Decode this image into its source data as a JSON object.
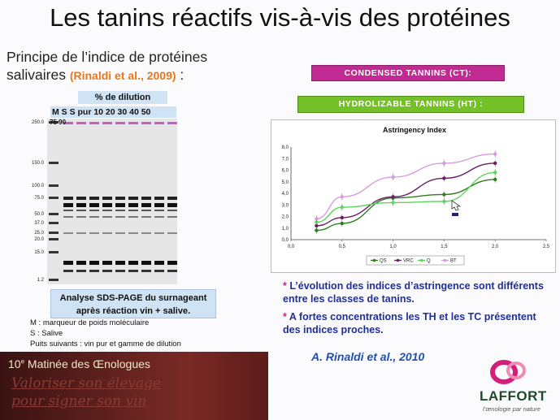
{
  "slide": {
    "title": "Les tanins réactifs vis-à-vis des protéines",
    "subtitle_line1": "Principe de l’indice de protéines",
    "subtitle_line2": "salivaires",
    "subtitle_citation": "(Rinaldi et al., 2009)",
    "subtitle_colon": " :"
  },
  "gel": {
    "dilution_header": "% de dilution",
    "lane_labels": "M   S   S  pur 10 20 30 40 50",
    "lane_values": "75 90",
    "markers": [
      "250.0",
      "150.0",
      "100.0",
      "75.0",
      "50.0",
      "37.0",
      "25.0",
      "20.0",
      "15.0",
      "1.2"
    ],
    "note_line1": "Analyse SDS-PAGE du surnageant",
    "note_line2": "après réaction vin + salive.",
    "legend": [
      "M : marqueur de poids moléculaire",
      "S : Salive",
      "Puits suivants : vin pur et gamme de dilution"
    ]
  },
  "labels": {
    "condensed": "CONDENSED TANNINS (CT):",
    "hydrolizable": "HYDROLIZABLE TANNINS (HT) :"
  },
  "chart_data": {
    "type": "line",
    "title": "Astringency Index",
    "x": [
      0.25,
      0.5,
      1,
      1.5,
      2
    ],
    "xlim": [
      0,
      2.5
    ],
    "ylim": [
      0,
      8
    ],
    "xticks": [
      "0,0",
      "0,5",
      "1,0",
      "1,5",
      "2,0",
      "2,5"
    ],
    "yticks": [
      "0,0",
      "1,0",
      "2,0",
      "3,0",
      "4,0",
      "5,0",
      "6,0",
      "7,0",
      "8,0"
    ],
    "grid": false,
    "legend_position": "bottom",
    "series": [
      {
        "name": "QS",
        "color": "#2e7d1e",
        "values": [
          0.8,
          1.4,
          3.6,
          3.9,
          5.2
        ]
      },
      {
        "name": "VRC",
        "color": "#6b1f66",
        "values": [
          1.2,
          1.9,
          3.7,
          5.3,
          6.6
        ]
      },
      {
        "name": "Q",
        "color": "#5cd65c",
        "values": [
          1.5,
          2.8,
          3.2,
          3.3,
          5.8
        ]
      },
      {
        "name": "BT",
        "color": "#d79ae0",
        "values": [
          1.8,
          3.7,
          5.4,
          6.6,
          7.4
        ]
      }
    ]
  },
  "bullets": {
    "b1": "L’évolution des indices d’astringence sont différents entre les classes de tanins.",
    "b2": "A fortes concentrations les TH et les TC présentent des indices proches.",
    "star": "*"
  },
  "reference": "A. Rinaldi et al., 2010",
  "banner": {
    "title_number": "10",
    "title_sup": "e",
    "title_rest": " Matinée des Œnologues",
    "script1": "Valoriser son élevage",
    "script2": "pour signer son vin"
  },
  "logo": {
    "name": "LAFFORT",
    "tagline": "l’œnologie par nature"
  }
}
